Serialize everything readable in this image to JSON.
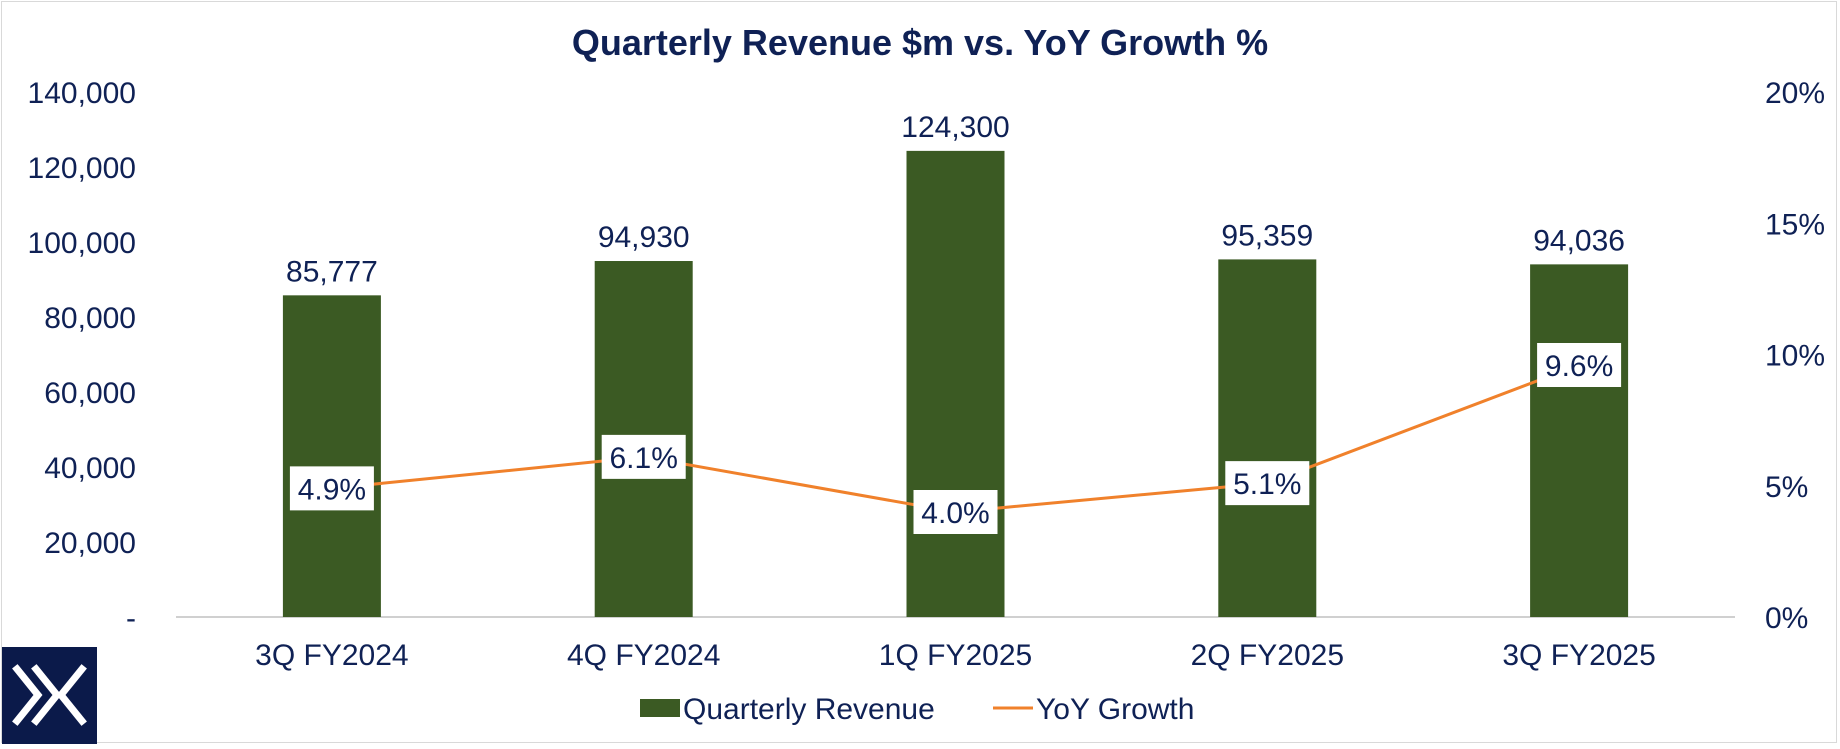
{
  "colors": {
    "navy": "#0f2155",
    "bar": "#3b5a23",
    "line": "#f0812b",
    "axis": "#d0d0d0",
    "logo_bg": "#0b1a4a"
  },
  "logo": {
    "icon": "double-chevron-x-logo-icon"
  },
  "chart_data": {
    "type": "bar",
    "title": "Quarterly  Revenue $m vs. YoY Growth %",
    "categories": [
      "3Q FY2024",
      "4Q FY2024",
      "1Q FY2025",
      "2Q FY2025",
      "3Q FY2025"
    ],
    "series": [
      {
        "name": "Quarterly Revenue",
        "type": "bar",
        "axis": "left",
        "values": [
          85777,
          94930,
          124300,
          95359,
          94036
        ],
        "labels": [
          "85,777",
          "94,930",
          "124,300",
          "95,359",
          "94,036"
        ]
      },
      {
        "name": "YoY Growth",
        "type": "line",
        "axis": "right",
        "values": [
          4.9,
          6.1,
          4.0,
          5.1,
          9.6
        ],
        "labels": [
          "4.9%",
          "6.1%",
          "4.0%",
          "5.1%",
          "9.6%"
        ]
      }
    ],
    "left_axis": {
      "ylim": [
        0,
        140000
      ],
      "ticks": [
        0,
        20000,
        40000,
        60000,
        80000,
        100000,
        120000,
        140000
      ],
      "tick_labels": [
        "-",
        "20,000",
        "40,000",
        "60,000",
        "80,000",
        "100,000",
        "120,000",
        "140,000"
      ]
    },
    "right_axis": {
      "ylim": [
        0,
        20
      ],
      "ticks": [
        0,
        5,
        10,
        15,
        20
      ],
      "tick_labels": [
        "0%",
        "5%",
        "10%",
        "15%",
        "20%"
      ]
    },
    "grid": false,
    "legend": "bottom"
  }
}
